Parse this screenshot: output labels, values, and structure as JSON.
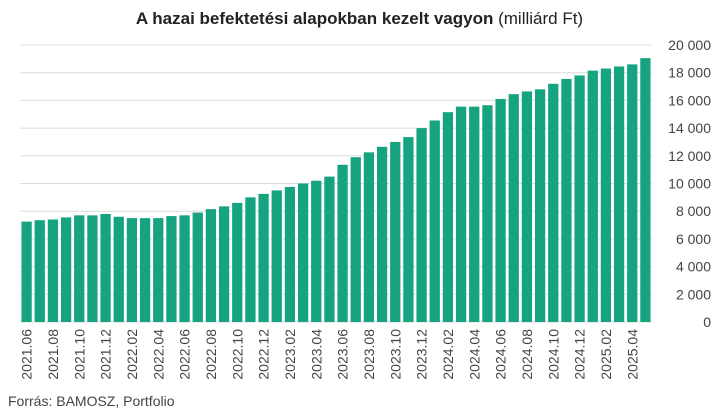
{
  "title_bold": "A hazai befektetési alapokban kezelt vagyon",
  "title_unit": "(milliárd Ft)",
  "source": "Forrás: BAMOSZ, Portfolio",
  "colors": {
    "bar": "#16a37f",
    "grid": "#dcdcdc",
    "text": "#444444"
  },
  "chart_data": {
    "type": "bar",
    "title": "A hazai befektetési alapokban kezelt vagyon (milliárd Ft)",
    "xlabel": "",
    "ylabel": "",
    "ylim": [
      0,
      20000
    ],
    "yticks": [
      0,
      2000,
      4000,
      6000,
      8000,
      10000,
      12000,
      14000,
      16000,
      18000,
      20000
    ],
    "ytick_labels": [
      "0",
      "2 000",
      "4 000",
      "6 000",
      "8 000",
      "10 000",
      "12 000",
      "14 000",
      "16 000",
      "18 000",
      "20 000"
    ],
    "y_axis_side": "right",
    "grid": true,
    "categories": [
      "2021.06",
      "2021.07",
      "2021.08",
      "2021.09",
      "2021.10",
      "2021.11",
      "2021.12",
      "2022.01",
      "2022.02",
      "2022.03",
      "2022.04",
      "2022.05",
      "2022.06",
      "2022.07",
      "2022.08",
      "2022.09",
      "2022.10",
      "2022.11",
      "2022.12",
      "2023.01",
      "2023.02",
      "2023.03",
      "2023.04",
      "2023.05",
      "2023.06",
      "2023.07",
      "2023.08",
      "2023.09",
      "2023.10",
      "2023.11",
      "2023.12",
      "2024.01",
      "2024.02",
      "2024.03",
      "2024.04",
      "2024.05",
      "2024.06",
      "2024.07",
      "2024.08",
      "2024.09",
      "2024.10",
      "2024.11",
      "2024.12",
      "2025.01",
      "2025.02",
      "2025.03",
      "2025.04",
      "2025.05"
    ],
    "tick_labels_shown": [
      "2021.06",
      "2021.08",
      "2021.10",
      "2021.12",
      "2022.02",
      "2022.04",
      "2022.06",
      "2022.08",
      "2022.10",
      "2022.12",
      "2023.02",
      "2023.04",
      "2023.06",
      "2023.08",
      "2023.10",
      "2023.12",
      "2024.02",
      "2024.04",
      "2024.06",
      "2024.08",
      "2024.10",
      "2024.12",
      "2025.02",
      "2025.04"
    ],
    "values": [
      7250,
      7350,
      7400,
      7550,
      7700,
      7700,
      7800,
      7600,
      7500,
      7500,
      7500,
      7650,
      7700,
      7900,
      8150,
      8350,
      8600,
      9000,
      9250,
      9500,
      9750,
      10000,
      10200,
      10500,
      11350,
      11900,
      12250,
      12650,
      13000,
      13350,
      14000,
      14550,
      15150,
      15550,
      15550,
      15650,
      16100,
      16450,
      16650,
      16800,
      17200,
      17550,
      17800,
      18150,
      18300,
      18450,
      18600,
      19050
    ]
  }
}
